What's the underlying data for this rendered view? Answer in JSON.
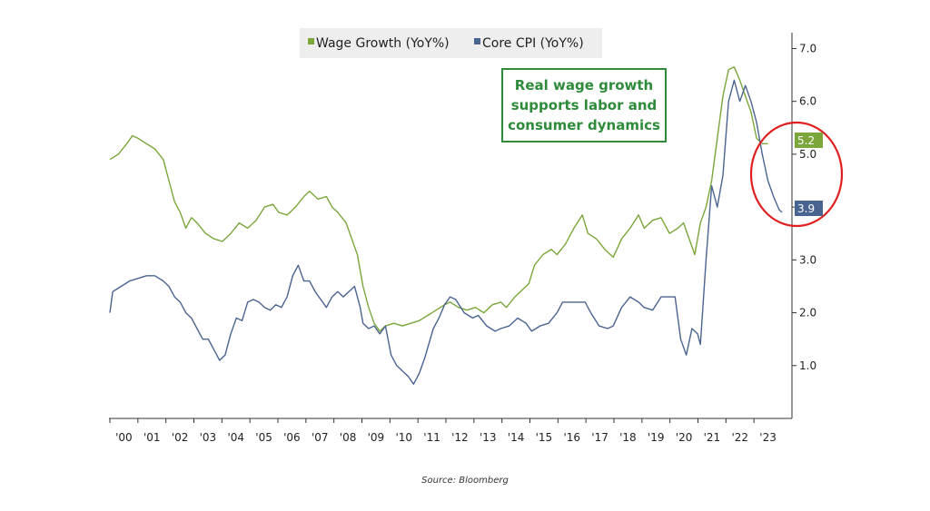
{
  "chart_data": {
    "type": "line",
    "xlabel": "",
    "ylabel": "",
    "xlim": [
      2000.0,
      2023.9
    ],
    "ylim": [
      0,
      7.3
    ],
    "grid": false,
    "legend_position": "top-center",
    "y_axis_side": "right",
    "y_ticks": [
      1.0,
      2.0,
      3.0,
      4.0,
      5.0,
      6.0,
      7.0
    ],
    "y_tick_labels": [
      "1.0",
      "2.0",
      "3.0",
      "4.0",
      "5.0",
      "6.0",
      "7.0"
    ],
    "x_tick_labels": [
      "'00",
      "'01",
      "'02",
      "'03",
      "'04",
      "'05",
      "'06",
      "'07",
      "'08",
      "'09",
      "'10",
      "'11",
      "'12",
      "'13",
      "'14",
      "'15",
      "'16",
      "'17",
      "'18",
      "'19",
      "'20",
      "'21",
      "'22",
      "'23"
    ],
    "series": [
      {
        "name": "Wage Growth (YoY%)",
        "legend_label": "Wage Growth (YoY%)",
        "color": "#7aa63a",
        "end_label": "5.2",
        "points": [
          [
            2000.0,
            4.9
          ],
          [
            2000.3,
            5.0
          ],
          [
            2000.6,
            5.2
          ],
          [
            2000.8,
            5.35
          ],
          [
            2001.0,
            5.3
          ],
          [
            2001.3,
            5.2
          ],
          [
            2001.6,
            5.1
          ],
          [
            2001.9,
            4.9
          ],
          [
            2002.1,
            4.5
          ],
          [
            2002.3,
            4.1
          ],
          [
            2002.5,
            3.9
          ],
          [
            2002.7,
            3.6
          ],
          [
            2002.9,
            3.8
          ],
          [
            2003.1,
            3.7
          ],
          [
            2003.4,
            3.5
          ],
          [
            2003.7,
            3.4
          ],
          [
            2004.0,
            3.35
          ],
          [
            2004.3,
            3.5
          ],
          [
            2004.6,
            3.7
          ],
          [
            2004.9,
            3.6
          ],
          [
            2005.2,
            3.75
          ],
          [
            2005.5,
            4.0
          ],
          [
            2005.8,
            4.05
          ],
          [
            2006.0,
            3.9
          ],
          [
            2006.3,
            3.85
          ],
          [
            2006.6,
            4.0
          ],
          [
            2006.9,
            4.2
          ],
          [
            2007.1,
            4.3
          ],
          [
            2007.4,
            4.15
          ],
          [
            2007.7,
            4.2
          ],
          [
            2007.9,
            4.0
          ],
          [
            2008.1,
            3.9
          ],
          [
            2008.4,
            3.7
          ],
          [
            2008.6,
            3.4
          ],
          [
            2008.8,
            3.1
          ],
          [
            2009.0,
            2.5
          ],
          [
            2009.2,
            2.1
          ],
          [
            2009.4,
            1.8
          ],
          [
            2009.6,
            1.65
          ],
          [
            2009.8,
            1.75
          ],
          [
            2010.1,
            1.8
          ],
          [
            2010.4,
            1.75
          ],
          [
            2010.7,
            1.8
          ],
          [
            2011.0,
            1.85
          ],
          [
            2011.3,
            1.95
          ],
          [
            2011.6,
            2.05
          ],
          [
            2011.9,
            2.15
          ],
          [
            2012.1,
            2.2
          ],
          [
            2012.4,
            2.1
          ],
          [
            2012.7,
            2.05
          ],
          [
            2013.0,
            2.1
          ],
          [
            2013.3,
            2.0
          ],
          [
            2013.6,
            2.15
          ],
          [
            2013.9,
            2.2
          ],
          [
            2014.1,
            2.1
          ],
          [
            2014.4,
            2.3
          ],
          [
            2014.7,
            2.45
          ],
          [
            2014.9,
            2.55
          ],
          [
            2015.1,
            2.9
          ],
          [
            2015.4,
            3.1
          ],
          [
            2015.7,
            3.2
          ],
          [
            2015.9,
            3.1
          ],
          [
            2016.2,
            3.3
          ],
          [
            2016.5,
            3.6
          ],
          [
            2016.8,
            3.85
          ],
          [
            2017.0,
            3.5
          ],
          [
            2017.3,
            3.4
          ],
          [
            2017.6,
            3.2
          ],
          [
            2017.9,
            3.05
          ],
          [
            2018.2,
            3.4
          ],
          [
            2018.5,
            3.6
          ],
          [
            2018.8,
            3.85
          ],
          [
            2019.0,
            3.6
          ],
          [
            2019.3,
            3.75
          ],
          [
            2019.6,
            3.8
          ],
          [
            2019.9,
            3.5
          ],
          [
            2020.2,
            3.6
          ],
          [
            2020.4,
            3.7
          ],
          [
            2020.6,
            3.4
          ],
          [
            2020.8,
            3.1
          ],
          [
            2021.0,
            3.7
          ],
          [
            2021.2,
            4.0
          ],
          [
            2021.4,
            4.5
          ],
          [
            2021.6,
            5.3
          ],
          [
            2021.8,
            6.1
          ],
          [
            2022.0,
            6.6
          ],
          [
            2022.2,
            6.65
          ],
          [
            2022.4,
            6.4
          ],
          [
            2022.6,
            6.1
          ],
          [
            2022.8,
            5.8
          ],
          [
            2023.0,
            5.3
          ],
          [
            2023.2,
            5.2
          ],
          [
            2023.4,
            5.2
          ]
        ]
      },
      {
        "name": "Core CPI (YoY%)",
        "legend_label": "Core CPI (YoY%)",
        "color": "#4a6491",
        "end_label": "3.9",
        "points": [
          [
            2000.0,
            2.0
          ],
          [
            2000.1,
            2.4
          ],
          [
            2000.4,
            2.5
          ],
          [
            2000.7,
            2.6
          ],
          [
            2001.0,
            2.65
          ],
          [
            2001.3,
            2.7
          ],
          [
            2001.6,
            2.7
          ],
          [
            2001.9,
            2.6
          ],
          [
            2002.1,
            2.5
          ],
          [
            2002.3,
            2.3
          ],
          [
            2002.5,
            2.2
          ],
          [
            2002.7,
            2.0
          ],
          [
            2002.9,
            1.9
          ],
          [
            2003.1,
            1.7
          ],
          [
            2003.3,
            1.5
          ],
          [
            2003.5,
            1.5
          ],
          [
            2003.7,
            1.3
          ],
          [
            2003.9,
            1.1
          ],
          [
            2004.1,
            1.2
          ],
          [
            2004.3,
            1.6
          ],
          [
            2004.5,
            1.9
          ],
          [
            2004.7,
            1.85
          ],
          [
            2004.9,
            2.2
          ],
          [
            2005.1,
            2.25
          ],
          [
            2005.3,
            2.2
          ],
          [
            2005.5,
            2.1
          ],
          [
            2005.7,
            2.05
          ],
          [
            2005.9,
            2.15
          ],
          [
            2006.1,
            2.1
          ],
          [
            2006.3,
            2.3
          ],
          [
            2006.5,
            2.7
          ],
          [
            2006.7,
            2.9
          ],
          [
            2006.9,
            2.6
          ],
          [
            2007.1,
            2.6
          ],
          [
            2007.3,
            2.4
          ],
          [
            2007.5,
            2.25
          ],
          [
            2007.7,
            2.1
          ],
          [
            2007.9,
            2.3
          ],
          [
            2008.1,
            2.4
          ],
          [
            2008.3,
            2.3
          ],
          [
            2008.5,
            2.4
          ],
          [
            2008.7,
            2.5
          ],
          [
            2008.9,
            2.1
          ],
          [
            2009.0,
            1.8
          ],
          [
            2009.2,
            1.7
          ],
          [
            2009.4,
            1.75
          ],
          [
            2009.6,
            1.6
          ],
          [
            2009.8,
            1.75
          ],
          [
            2010.0,
            1.2
          ],
          [
            2010.2,
            1.0
          ],
          [
            2010.4,
            0.9
          ],
          [
            2010.6,
            0.8
          ],
          [
            2010.8,
            0.65
          ],
          [
            2011.0,
            0.85
          ],
          [
            2011.2,
            1.15
          ],
          [
            2011.5,
            1.7
          ],
          [
            2011.7,
            1.9
          ],
          [
            2011.9,
            2.15
          ],
          [
            2012.1,
            2.3
          ],
          [
            2012.3,
            2.25
          ],
          [
            2012.6,
            2.0
          ],
          [
            2012.9,
            1.9
          ],
          [
            2013.1,
            1.95
          ],
          [
            2013.4,
            1.75
          ],
          [
            2013.7,
            1.65
          ],
          [
            2013.9,
            1.7
          ],
          [
            2014.2,
            1.75
          ],
          [
            2014.5,
            1.9
          ],
          [
            2014.8,
            1.8
          ],
          [
            2015.0,
            1.65
          ],
          [
            2015.3,
            1.75
          ],
          [
            2015.6,
            1.8
          ],
          [
            2015.9,
            2.0
          ],
          [
            2016.1,
            2.2
          ],
          [
            2016.4,
            2.2
          ],
          [
            2016.7,
            2.2
          ],
          [
            2016.9,
            2.2
          ],
          [
            2017.1,
            2.0
          ],
          [
            2017.4,
            1.75
          ],
          [
            2017.7,
            1.7
          ],
          [
            2017.9,
            1.75
          ],
          [
            2018.2,
            2.1
          ],
          [
            2018.5,
            2.3
          ],
          [
            2018.8,
            2.2
          ],
          [
            2019.0,
            2.1
          ],
          [
            2019.3,
            2.05
          ],
          [
            2019.6,
            2.3
          ],
          [
            2019.9,
            2.3
          ],
          [
            2020.1,
            2.3
          ],
          [
            2020.3,
            1.5
          ],
          [
            2020.5,
            1.2
          ],
          [
            2020.7,
            1.7
          ],
          [
            2020.9,
            1.6
          ],
          [
            2021.0,
            1.4
          ],
          [
            2021.2,
            3.0
          ],
          [
            2021.4,
            4.4
          ],
          [
            2021.6,
            4.0
          ],
          [
            2021.8,
            4.6
          ],
          [
            2022.0,
            6.0
          ],
          [
            2022.2,
            6.4
          ],
          [
            2022.4,
            6.0
          ],
          [
            2022.6,
            6.3
          ],
          [
            2022.8,
            6.0
          ],
          [
            2023.0,
            5.6
          ],
          [
            2023.2,
            5.0
          ],
          [
            2023.4,
            4.5
          ],
          [
            2023.6,
            4.2
          ],
          [
            2023.8,
            3.95
          ],
          [
            2023.9,
            3.9
          ]
        ]
      }
    ],
    "annotation": {
      "lines": [
        "Real wage growth",
        "supports labor and",
        "consumer dynamics"
      ],
      "text_color": "#2e8b3a",
      "border_color": "#2e8b3a",
      "highlight": "red circle around latest values",
      "circle_color": "#e02020"
    }
  },
  "source": "Source: Bloomberg"
}
